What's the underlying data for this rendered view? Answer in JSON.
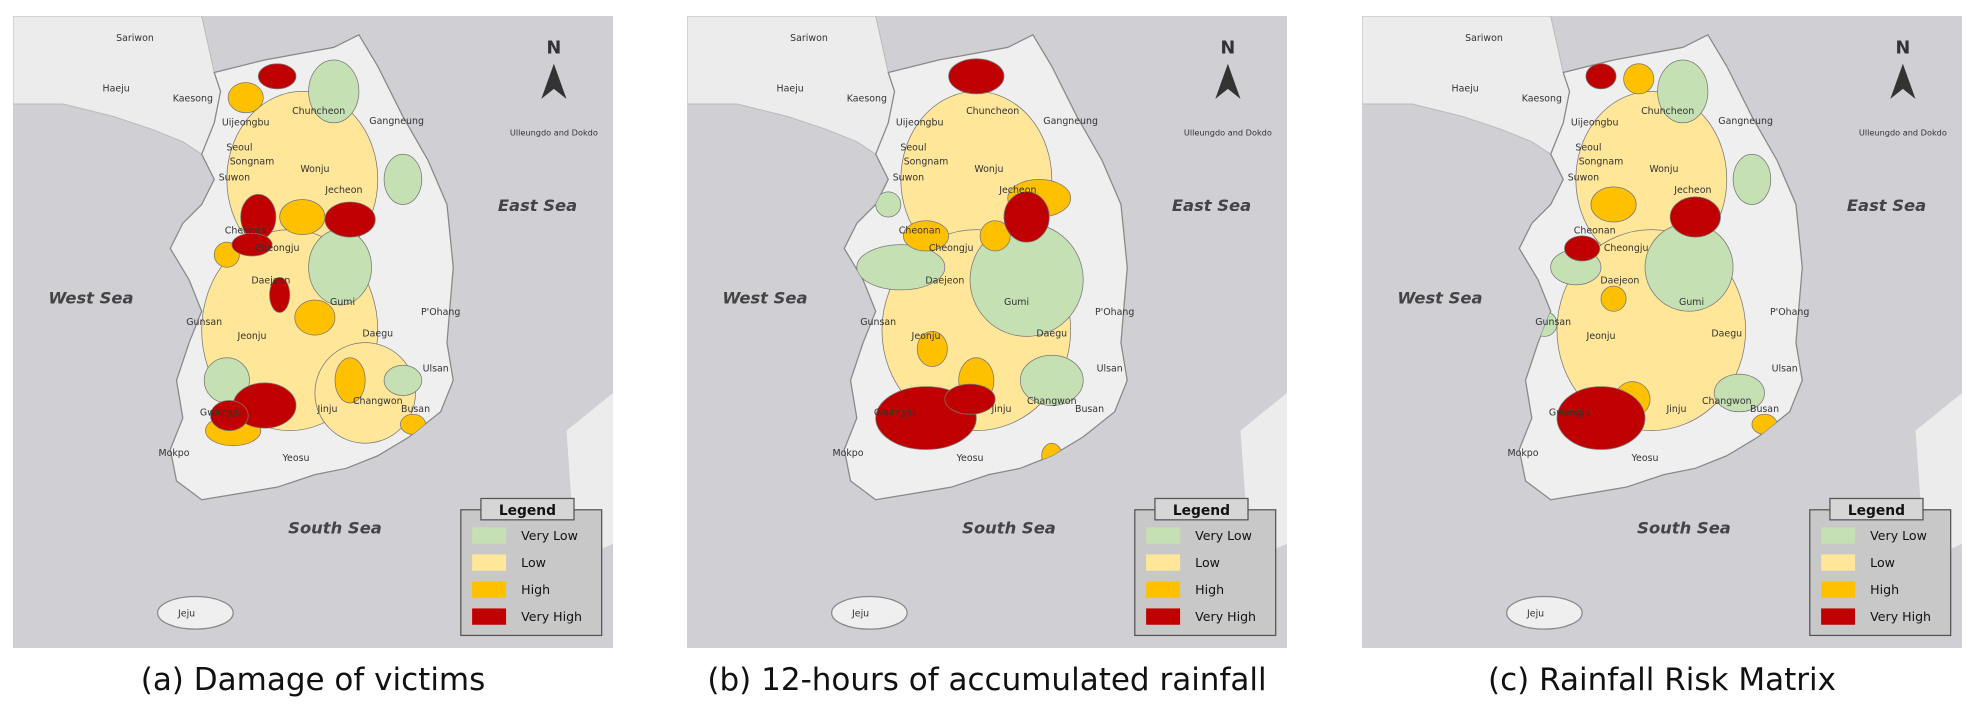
{
  "panels": [
    {
      "caption": "(a) Damage of victims"
    },
    {
      "caption": "(b) 12-hours of accumulated rainfall"
    },
    {
      "caption": "(c) Rainfall Risk Matrix"
    }
  ],
  "north": "N",
  "seas": [
    "East Sea",
    "West Sea",
    "South Sea"
  ],
  "places": [
    "Sariwon",
    "Haeju",
    "Kaesong",
    "Uijeongbu",
    "Chuncheon",
    "Gangneung",
    "Seoul",
    "Songnam",
    "Suwon",
    "Wonju",
    "Ulleungdo and Dokdo",
    "Jecheon",
    "Cheonan",
    "Cheongju",
    "Daejeon",
    "Gumi",
    "P'Ohang",
    "Daegu",
    "Gunsan",
    "Jeonju",
    "Ulsan",
    "Changwon",
    "Busan",
    "Jinju",
    "Gwangju",
    "Mokpo",
    "Yeosu",
    "Jeju"
  ],
  "legend": {
    "title": "Legend",
    "items": [
      {
        "label": "Very Low",
        "color": "#c5e0b3"
      },
      {
        "label": "Low",
        "color": "#ffe699"
      },
      {
        "label": "High",
        "color": "#ffc000"
      },
      {
        "label": "Very High",
        "color": "#c00000"
      }
    ]
  }
}
